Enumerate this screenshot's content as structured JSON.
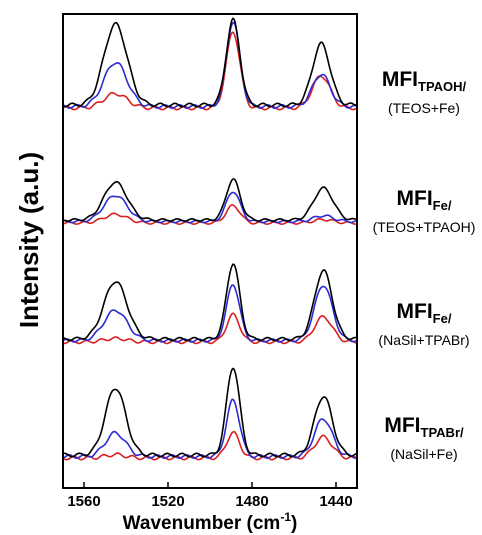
{
  "chart_data": {
    "type": "line",
    "xlabel_main": "Wavenumber (cm",
    "xlabel_sup": "-1",
    "xlabel_end": ")",
    "ylabel": "Intensity (a.u.)",
    "xlim": [
      1570,
      1430
    ],
    "x_reversed": true,
    "xticks": [
      1560,
      1520,
      1480,
      1440
    ],
    "grid": false,
    "series_colors": [
      "#000000",
      "#2b2bd6",
      "#d92020"
    ],
    "panels": [
      {
        "label_main": "MFI",
        "label_sub": "TPAOH/",
        "label_cond": "(TEOS+Fe)",
        "baseline": 0.0,
        "peaks": [
          {
            "pos": 1545,
            "width": 5.5,
            "amps": [
              0.95,
              0.52,
              0.17
            ]
          },
          {
            "pos": 1489,
            "width": 3.2,
            "amps": [
              1.0,
              1.0,
              0.9
            ]
          },
          {
            "pos": 1447,
            "width": 4.2,
            "amps": [
              0.72,
              0.38,
              0.38
            ]
          }
        ]
      },
      {
        "label_main": "MFI",
        "label_sub": "Fe/",
        "label_cond": "(TEOS+TPAOH)",
        "baseline": 0.0,
        "peaks": [
          {
            "pos": 1545,
            "width": 5.5,
            "amps": [
              0.65,
              0.45,
              0.15
            ]
          },
          {
            "pos": 1489,
            "width": 3.3,
            "amps": [
              0.7,
              0.52,
              0.3
            ]
          },
          {
            "pos": 1446,
            "width": 4.6,
            "amps": [
              0.55,
              0.1,
              0.06
            ]
          }
        ]
      },
      {
        "label_main": "MFI",
        "label_sub": "Fe/",
        "label_cond": "(NaSil+TPABr)",
        "baseline": 0.0,
        "peaks": [
          {
            "pos": 1545,
            "width": 5.5,
            "amps": [
              0.8,
              0.42,
              0.05
            ]
          },
          {
            "pos": 1489,
            "width": 3.1,
            "amps": [
              1.05,
              0.78,
              0.38
            ]
          },
          {
            "pos": 1446,
            "width": 4.2,
            "amps": [
              0.95,
              0.77,
              0.35
            ]
          }
        ]
      },
      {
        "label_main": "MFI",
        "label_sub": "TPABr/",
        "label_cond": "(NaSil+Fe)",
        "baseline": 0.0,
        "peaks": [
          {
            "pos": 1545,
            "width": 4.8,
            "amps": [
              0.8,
              0.28,
              0.04
            ]
          },
          {
            "pos": 1489,
            "width": 3.1,
            "amps": [
              1.05,
              0.67,
              0.3
            ]
          },
          {
            "pos": 1446,
            "width": 4.2,
            "amps": [
              0.7,
              0.45,
              0.25
            ]
          }
        ]
      }
    ]
  }
}
